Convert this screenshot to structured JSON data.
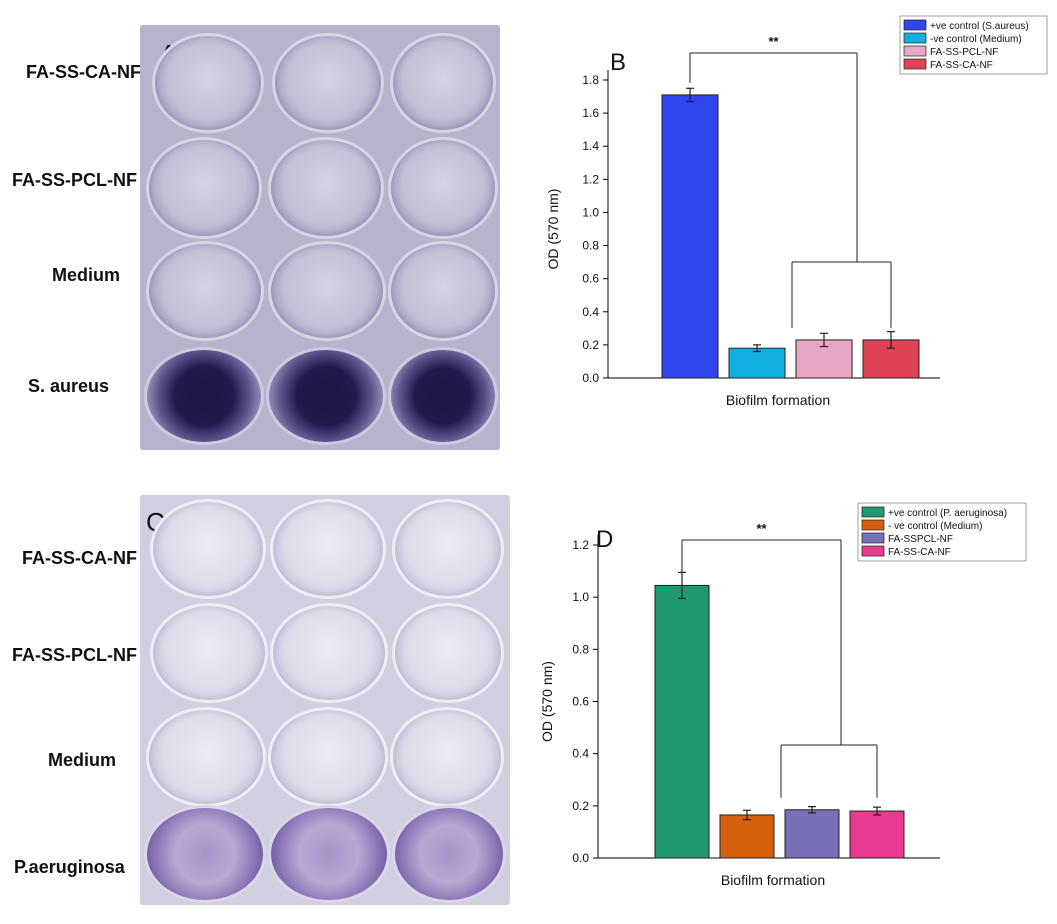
{
  "panel_a": {
    "letter": "A",
    "row_labels": [
      "FA-SS-CA-NF",
      "FA-SS-PCL-NF",
      "Medium",
      "S. aureus"
    ]
  },
  "panel_c": {
    "letter": "C",
    "row_labels": [
      "FA-SS-CA-NF",
      "FA-SS-PCL-NF",
      "Medium",
      "P.aeruginosa"
    ]
  },
  "chart_data": [
    {
      "panel": "B",
      "type": "bar",
      "xlabel": "Biofilm formation",
      "ylabel": "OD (570 nm)",
      "ylim": [
        0,
        1.8
      ],
      "yticks": [
        "0.0",
        "0.2",
        "0.4",
        "0.6",
        "0.8",
        "1.0",
        "1.2",
        "1.4",
        "1.6",
        "1.8"
      ],
      "significance": "**",
      "legend_position": "top-right",
      "series": [
        {
          "name": "+ve control (S.aureus)",
          "value": 1.71,
          "error": 0.04,
          "color": "#2f45ee"
        },
        {
          "name": "-ve control (Medium)",
          "value": 0.18,
          "error": 0.02,
          "color": "#13aee0"
        },
        {
          "name": "FA-SS-PCL-NF",
          "value": 0.23,
          "error": 0.04,
          "color": "#e8a7c7"
        },
        {
          "name": "FA-SS-CA-NF",
          "value": 0.23,
          "error": 0.05,
          "color": "#dd4355"
        }
      ]
    },
    {
      "panel": "D",
      "type": "bar",
      "xlabel": "Biofilm formation",
      "ylabel": "OD (570 nm)",
      "ylim": [
        0,
        1.2
      ],
      "yticks": [
        "0.0",
        "0.2",
        "0.4",
        "0.6",
        "0.8",
        "1.0",
        "1.2"
      ],
      "significance": "**",
      "legend_position": "top-right",
      "series": [
        {
          "name": "+ve control (P. aeruginosa)",
          "value": 1.045,
          "error": 0.05,
          "color": "#1e9a72"
        },
        {
          "name": "- ve control (Medium)",
          "value": 0.165,
          "error": 0.018,
          "color": "#d4600e"
        },
        {
          "name": "FA-SSPCL-NF",
          "value": 0.185,
          "error": 0.012,
          "color": "#7570b7"
        },
        {
          "name": "FA-SS-CA-NF",
          "value": 0.18,
          "error": 0.015,
          "color": "#e83a8f"
        }
      ]
    }
  ]
}
